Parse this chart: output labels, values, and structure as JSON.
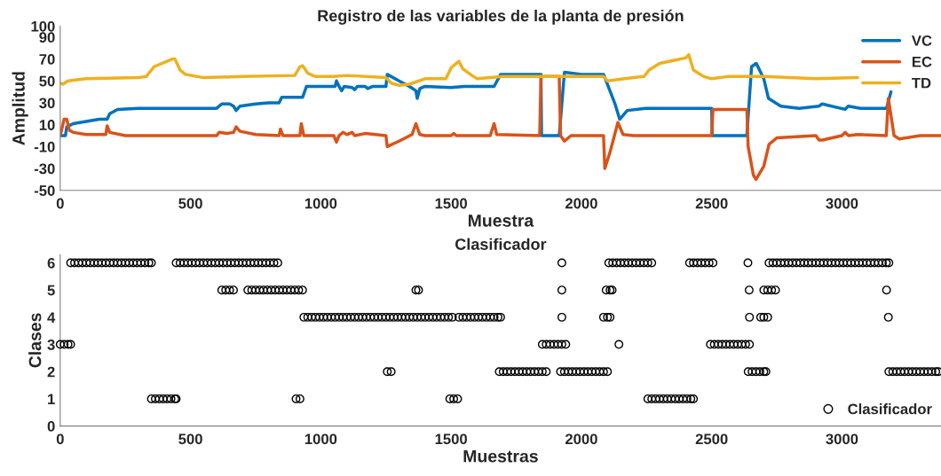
{
  "chart_data": [
    {
      "type": "line",
      "title": "Registro de las variables de la planta de presión",
      "xlabel": "Muestra",
      "ylabel": "Amplitud",
      "xlim": [
        0,
        3380
      ],
      "xticks": [
        0,
        500,
        1000,
        1500,
        2000,
        2500,
        3000
      ],
      "ylim": [
        -50,
        100
      ],
      "yticks": [
        -50,
        -30,
        -10,
        10,
        30,
        50,
        70,
        90,
        100
      ],
      "grid": false,
      "legend": "top right",
      "line_style": "solid",
      "marker": "none",
      "series": [
        {
          "name": "VC",
          "color": "#0072bd",
          "x": [
            0,
            20,
            25,
            50,
            100,
            150,
            180,
            190,
            220,
            300,
            500,
            600,
            620,
            650,
            665,
            675,
            690,
            750,
            800,
            840,
            850,
            900,
            930,
            945,
            1000,
            1055,
            1060,
            1070,
            1080,
            1090,
            1120,
            1130,
            1140,
            1170,
            1180,
            1200,
            1250,
            1255,
            1300,
            1340,
            1365,
            1370,
            1380,
            1400,
            1500,
            1550,
            1665,
            1690,
            1845,
            1847,
            1915,
            1935,
            2000,
            2085,
            2129,
            2147,
            2176,
            2247,
            2500,
            2502,
            2635,
            2653,
            2671,
            2700,
            2718,
            2765,
            2835,
            2912,
            2924,
            3012,
            3024,
            3071,
            3171,
            3188
          ],
          "values": [
            0,
            0,
            8,
            11,
            13,
            15,
            15,
            20,
            24,
            25,
            25,
            25,
            29,
            29,
            27,
            23,
            27,
            29,
            30,
            30,
            35,
            35,
            35,
            45,
            45,
            45,
            50,
            45,
            41,
            45,
            44,
            42,
            45,
            45,
            43,
            45,
            45,
            56,
            50,
            45,
            41,
            34,
            43,
            45,
            44,
            45,
            45,
            56,
            56,
            0,
            0,
            58,
            56,
            56,
            29,
            15,
            23,
            25,
            25,
            0,
            0,
            63,
            66,
            52,
            34,
            27,
            25,
            27,
            29,
            24,
            27,
            25,
            25,
            40
          ]
        },
        {
          "name": "EC",
          "color": "#d95319",
          "x": [
            0,
            15,
            25,
            35,
            50,
            100,
            175,
            180,
            190,
            250,
            600,
            610,
            640,
            665,
            675,
            690,
            750,
            840,
            845,
            855,
            920,
            925,
            935,
            1050,
            1060,
            1070,
            1085,
            1100,
            1120,
            1130,
            1170,
            1250,
            1255,
            1300,
            1350,
            1365,
            1380,
            1400,
            1500,
            1510,
            1520,
            1650,
            1665,
            1675,
            1840,
            1845,
            1915,
            1920,
            1935,
            1960,
            2085,
            2090,
            2110,
            2140,
            2160,
            2200,
            2500,
            2505,
            2635,
            2640,
            2660,
            2670,
            2700,
            2720,
            2750,
            2900,
            2912,
            2925,
            3000,
            3012,
            3025,
            3060,
            3170,
            3178,
            3200,
            3220,
            3300,
            3380
          ],
          "values": [
            0,
            15,
            15,
            5,
            3,
            1,
            1,
            9,
            3,
            0,
            0,
            3,
            2,
            3,
            8,
            4,
            1,
            0,
            6,
            0,
            0,
            11,
            0,
            0,
            -6,
            0,
            3,
            1,
            3,
            0,
            2,
            0,
            -10,
            -5,
            1,
            11,
            1,
            0,
            0,
            2,
            0,
            0,
            11,
            1,
            0,
            54,
            54,
            0,
            -5,
            0,
            0,
            -30,
            -15,
            12,
            1,
            0,
            0,
            24,
            24,
            -10,
            -36,
            -40,
            -28,
            -8,
            -2,
            0,
            -4,
            -4,
            0,
            3,
            0,
            1,
            0,
            34,
            0,
            -3,
            0,
            0
          ]
        },
        {
          "name": "TD",
          "color": "#edb120",
          "x": [
            0,
            10,
            30,
            100,
            300,
            330,
            360,
            400,
            430,
            440,
            460,
            480,
            550,
            700,
            900,
            920,
            930,
            950,
            980,
            1050,
            1100,
            1250,
            1270,
            1300,
            1340,
            1400,
            1480,
            1500,
            1530,
            1545,
            1580,
            1600,
            1650,
            1700,
            2085,
            2100,
            2200,
            2240,
            2260,
            2300,
            2400,
            2412,
            2430,
            2470,
            2500,
            2560,
            2700,
            2800,
            2900,
            3060
          ],
          "values": [
            48,
            47,
            50,
            52,
            53,
            54,
            63,
            67,
            70,
            70,
            60,
            56,
            53,
            54,
            55,
            63,
            64,
            57,
            54,
            54,
            55,
            53,
            48,
            46,
            47,
            52,
            52,
            62,
            68,
            61,
            55,
            52,
            53,
            54,
            54,
            50,
            53,
            54,
            60,
            66,
            71,
            74,
            60,
            54,
            52,
            54,
            54,
            53,
            52,
            53
          ]
        }
      ]
    },
    {
      "type": "scatter",
      "title": "Clasificador",
      "xlabel": "Muestras",
      "ylabel": "Clases",
      "xlim": [
        0,
        3380
      ],
      "xticks": [
        0,
        500,
        1000,
        1500,
        2000,
        2500,
        3000
      ],
      "ylim": [
        0,
        6.3
      ],
      "yticks": [
        0,
        1,
        2,
        3,
        4,
        5,
        6
      ],
      "grid": false,
      "legend": "bottom right",
      "marker": "circle",
      "series": [
        {
          "name": "Clasificador",
          "color": "#000000",
          "x": [
            0,
            15,
            30,
            40,
            40,
            55,
            70,
            85,
            100,
            115,
            130,
            145,
            160,
            175,
            190,
            205,
            220,
            235,
            250,
            265,
            280,
            295,
            310,
            325,
            340,
            350,
            350,
            365,
            380,
            395,
            410,
            425,
            440,
            445,
            445,
            460,
            475,
            490,
            505,
            520,
            535,
            550,
            565,
            580,
            595,
            610,
            625,
            640,
            655,
            670,
            685,
            700,
            715,
            730,
            745,
            760,
            775,
            790,
            805,
            820,
            835,
            620,
            635,
            650,
            665,
            720,
            735,
            750,
            765,
            780,
            795,
            810,
            825,
            840,
            855,
            870,
            885,
            900,
            915,
            930,
            905,
            920,
            935,
            950,
            965,
            980,
            995,
            1010,
            1025,
            1040,
            1055,
            1070,
            1085,
            1100,
            1115,
            1130,
            1145,
            1160,
            1175,
            1190,
            1205,
            1220,
            1235,
            1250,
            1265,
            1280,
            1295,
            1310,
            1325,
            1340,
            1355,
            1370,
            1385,
            1400,
            1415,
            1430,
            1445,
            1460,
            1475,
            1490,
            1505,
            1255,
            1270,
            1365,
            1375,
            1495,
            1510,
            1525,
            1530,
            1545,
            1560,
            1575,
            1590,
            1605,
            1620,
            1635,
            1650,
            1665,
            1680,
            1690,
            1685,
            1700,
            1715,
            1730,
            1745,
            1760,
            1775,
            1790,
            1805,
            1820,
            1835,
            1850,
            1865,
            1850,
            1865,
            1880,
            1895,
            1910,
            1925,
            1940,
            1925,
            1925,
            1925,
            1920,
            1935,
            1950,
            1965,
            1980,
            1995,
            2010,
            2025,
            2040,
            2055,
            2070,
            2085,
            2100,
            2085,
            2100,
            2110,
            2095,
            2110,
            2118,
            2144,
            2105,
            2120,
            2135,
            2150,
            2165,
            2180,
            2195,
            2210,
            2225,
            2240,
            2255,
            2270,
            2255,
            2270,
            2285,
            2300,
            2315,
            2330,
            2345,
            2360,
            2375,
            2390,
            2405,
            2420,
            2430,
            2415,
            2430,
            2445,
            2460,
            2475,
            2490,
            2505,
            2495,
            2510,
            2525,
            2540,
            2555,
            2570,
            2585,
            2600,
            2615,
            2630,
            2645,
            2639,
            2644,
            2645,
            2640,
            2655,
            2670,
            2685,
            2700,
            2708,
            2688,
            2700,
            2715,
            2700,
            2715,
            2730,
            2745,
            2720,
            2735,
            2750,
            2765,
            2780,
            2795,
            2810,
            2825,
            2840,
            2855,
            2870,
            2885,
            2900,
            2915,
            2930,
            2945,
            2960,
            2975,
            2990,
            3005,
            3020,
            3035,
            3050,
            3065,
            3080,
            3095,
            3110,
            3125,
            3140,
            3155,
            3170,
            3180,
            3171,
            3178,
            3180,
            3195,
            3210,
            3225,
            3240,
            3255,
            3270,
            3285,
            3300,
            3315,
            3330,
            3345,
            3360,
            3370
          ],
          "values": [
            3,
            3,
            3,
            3,
            6,
            6,
            6,
            6,
            6,
            6,
            6,
            6,
            6,
            6,
            6,
            6,
            6,
            6,
            6,
            6,
            6,
            6,
            6,
            6,
            6,
            6,
            1,
            1,
            1,
            1,
            1,
            1,
            1,
            1,
            6,
            6,
            6,
            6,
            6,
            6,
            6,
            6,
            6,
            6,
            6,
            6,
            6,
            6,
            6,
            6,
            6,
            6,
            6,
            6,
            6,
            6,
            6,
            6,
            6,
            6,
            6,
            5,
            5,
            5,
            5,
            5,
            5,
            5,
            5,
            5,
            5,
            5,
            5,
            5,
            5,
            5,
            5,
            5,
            5,
            5,
            1,
            1,
            4,
            4,
            4,
            4,
            4,
            4,
            4,
            4,
            4,
            4,
            4,
            4,
            4,
            4,
            4,
            4,
            4,
            4,
            4,
            4,
            4,
            4,
            4,
            4,
            4,
            4,
            4,
            4,
            4,
            4,
            4,
            4,
            4,
            4,
            4,
            4,
            4,
            4,
            4,
            2,
            2,
            5,
            5,
            1,
            1,
            1,
            4,
            4,
            4,
            4,
            4,
            4,
            4,
            4,
            4,
            4,
            4,
            4,
            2,
            2,
            2,
            2,
            2,
            2,
            2,
            2,
            2,
            2,
            2,
            2,
            2,
            3,
            3,
            3,
            3,
            3,
            3,
            3,
            6,
            5,
            4,
            2,
            2,
            2,
            2,
            2,
            2,
            2,
            2,
            2,
            2,
            2,
            2,
            2,
            4,
            4,
            4,
            5,
            5,
            5,
            3,
            6,
            6,
            6,
            6,
            6,
            6,
            6,
            6,
            6,
            6,
            6,
            6,
            1,
            1,
            1,
            1,
            1,
            1,
            1,
            1,
            1,
            1,
            1,
            1,
            1,
            6,
            6,
            6,
            6,
            6,
            6,
            6,
            3,
            3,
            3,
            3,
            3,
            3,
            3,
            3,
            3,
            3,
            3,
            6,
            5,
            4,
            2,
            2,
            2,
            2,
            2,
            2,
            4,
            4,
            4,
            5,
            5,
            5,
            5,
            6,
            6,
            6,
            6,
            6,
            6,
            6,
            6,
            6,
            6,
            6,
            6,
            6,
            6,
            6,
            6,
            6,
            6,
            6,
            6,
            6,
            6,
            6,
            6,
            6,
            6,
            6,
            6,
            6,
            6,
            6,
            6,
            5,
            4,
            2,
            2,
            2,
            2,
            2,
            2,
            2,
            2,
            2,
            2,
            2,
            2,
            2,
            2
          ]
        }
      ]
    }
  ]
}
